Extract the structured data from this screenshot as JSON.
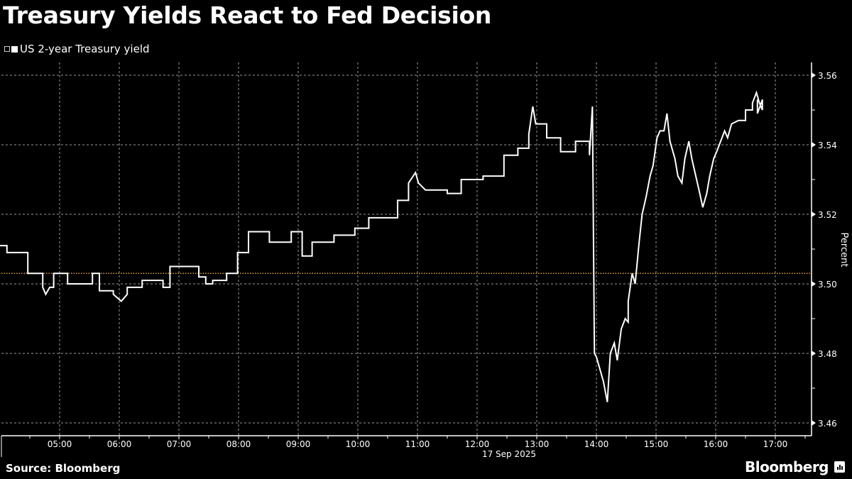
{
  "header": {
    "title": "Treasury Yields React to Fed Decision"
  },
  "legend": {
    "items": [
      {
        "label": "US 2-year Treasury yield",
        "color": "#ffffff"
      }
    ]
  },
  "footer": {
    "source": "Source: Bloomberg",
    "brand": "Bloomberg",
    "brand_icon": "bloomberg-chart-icon"
  },
  "colors": {
    "background": "#000000",
    "line": "#ffffff",
    "reference_line": "#e0a030",
    "grid": "#9a9a9a"
  },
  "chart_data": {
    "type": "line",
    "title": "Treasury Yields React to Fed Decision",
    "xlabel": "17 Sep 2025",
    "ylabel": "Percent",
    "x_unit": "minutes since 04:00",
    "xlim": [
      0,
      812
    ],
    "ylim": [
      3.456,
      3.5645
    ],
    "x_ticks": [
      "05:00",
      "06:00",
      "07:00",
      "08:00",
      "09:00",
      "10:00",
      "11:00",
      "12:00",
      "13:00",
      "14:00",
      "15:00",
      "16:00",
      "17:00"
    ],
    "x_tick_minutes": [
      60,
      120,
      180,
      240,
      300,
      360,
      420,
      480,
      540,
      600,
      660,
      720,
      780
    ],
    "date_label": "17 Sep 2025",
    "y_ticks": [
      3.46,
      3.48,
      3.5,
      3.52,
      3.54,
      3.56
    ],
    "y_tick_labels": [
      "3.46",
      "3.48",
      "3.50",
      "3.52",
      "3.54",
      "3.56"
    ],
    "grid": true,
    "legend_position": "top-left",
    "reference_line": {
      "value": 3.503,
      "style": "dotted",
      "color": "#e0a030"
    },
    "series": [
      {
        "name": "US 2-year Treasury yield",
        "points": [
          [
            0,
            3.511
          ],
          [
            7,
            3.511
          ],
          [
            7,
            3.509
          ],
          [
            28,
            3.509
          ],
          [
            28,
            3.503
          ],
          [
            43,
            3.503
          ],
          [
            43,
            3.499
          ],
          [
            46,
            3.497
          ],
          [
            50,
            3.499
          ],
          [
            54,
            3.499
          ],
          [
            54,
            3.503
          ],
          [
            68,
            3.503
          ],
          [
            68,
            3.5
          ],
          [
            93,
            3.5
          ],
          [
            93,
            3.503
          ],
          [
            100,
            3.503
          ],
          [
            100,
            3.498
          ],
          [
            114,
            3.498
          ],
          [
            114,
            3.497
          ],
          [
            122,
            3.495
          ],
          [
            128,
            3.497
          ],
          [
            128,
            3.499
          ],
          [
            143,
            3.499
          ],
          [
            143,
            3.501
          ],
          [
            164,
            3.501
          ],
          [
            164,
            3.499
          ],
          [
            171,
            3.499
          ],
          [
            171,
            3.505
          ],
          [
            200,
            3.505
          ],
          [
            200,
            3.502
          ],
          [
            207,
            3.502
          ],
          [
            207,
            3.5
          ],
          [
            214,
            3.5
          ],
          [
            214,
            3.501
          ],
          [
            228,
            3.501
          ],
          [
            228,
            3.503
          ],
          [
            239,
            3.503
          ],
          [
            239,
            3.509
          ],
          [
            250,
            3.509
          ],
          [
            250,
            3.515
          ],
          [
            271,
            3.515
          ],
          [
            271,
            3.512
          ],
          [
            293,
            3.512
          ],
          [
            293,
            3.515
          ],
          [
            304,
            3.515
          ],
          [
            304,
            3.508
          ],
          [
            314,
            3.508
          ],
          [
            314,
            3.512
          ],
          [
            336,
            3.512
          ],
          [
            336,
            3.514
          ],
          [
            357,
            3.514
          ],
          [
            357,
            3.516
          ],
          [
            371,
            3.516
          ],
          [
            371,
            3.519
          ],
          [
            400,
            3.519
          ],
          [
            400,
            3.524
          ],
          [
            411,
            3.524
          ],
          [
            411,
            3.529
          ],
          [
            418,
            3.532
          ],
          [
            421,
            3.529
          ],
          [
            428,
            3.527
          ],
          [
            450,
            3.527
          ],
          [
            450,
            3.526
          ],
          [
            464,
            3.526
          ],
          [
            464,
            3.53
          ],
          [
            486,
            3.53
          ],
          [
            486,
            3.531
          ],
          [
            507,
            3.531
          ],
          [
            507,
            3.537
          ],
          [
            521,
            3.537
          ],
          [
            521,
            3.539
          ],
          [
            532,
            3.539
          ],
          [
            532,
            3.543
          ],
          [
            536,
            3.551
          ],
          [
            539,
            3.546
          ],
          [
            550,
            3.546
          ],
          [
            550,
            3.542
          ],
          [
            564,
            3.542
          ],
          [
            564,
            3.538
          ],
          [
            579,
            3.538
          ],
          [
            579,
            3.541
          ],
          [
            593,
            3.541
          ],
          [
            593,
            3.537
          ],
          [
            596,
            3.551
          ],
          [
            598,
            3.48
          ],
          [
            600,
            3.479
          ],
          [
            607,
            3.472
          ],
          [
            609,
            3.469
          ],
          [
            611,
            3.466
          ],
          [
            614,
            3.48
          ],
          [
            618,
            3.483
          ],
          [
            621,
            3.478
          ],
          [
            625,
            3.487
          ],
          [
            629,
            3.49
          ],
          [
            632,
            3.489
          ],
          [
            632,
            3.495
          ],
          [
            636,
            3.503
          ],
          [
            639,
            3.5
          ],
          [
            643,
            3.512
          ],
          [
            646,
            3.52
          ],
          [
            650,
            3.525
          ],
          [
            654,
            3.531
          ],
          [
            657,
            3.534
          ],
          [
            661,
            3.542
          ],
          [
            664,
            3.544
          ],
          [
            668,
            3.544
          ],
          [
            671,
            3.549
          ],
          [
            674,
            3.541
          ],
          [
            679,
            3.536
          ],
          [
            682,
            3.531
          ],
          [
            686,
            3.529
          ],
          [
            689,
            3.536
          ],
          [
            693,
            3.541
          ],
          [
            696,
            3.536
          ],
          [
            700,
            3.531
          ],
          [
            704,
            3.526
          ],
          [
            707,
            3.522
          ],
          [
            711,
            3.526
          ],
          [
            714,
            3.531
          ],
          [
            718,
            3.536
          ],
          [
            721,
            3.538
          ],
          [
            725,
            3.541
          ],
          [
            729,
            3.544
          ],
          [
            732,
            3.542
          ],
          [
            736,
            3.546
          ],
          [
            743,
            3.547
          ],
          [
            750,
            3.547
          ],
          [
            750,
            3.55
          ],
          [
            757,
            3.55
          ],
          [
            757,
            3.552
          ],
          [
            761,
            3.555
          ],
          [
            764,
            3.552
          ],
          [
            767,
            3.55
          ],
          [
            767,
            3.553
          ],
          [
            762,
            3.549
          ],
          [
            762,
            3.553
          ]
        ]
      }
    ]
  }
}
